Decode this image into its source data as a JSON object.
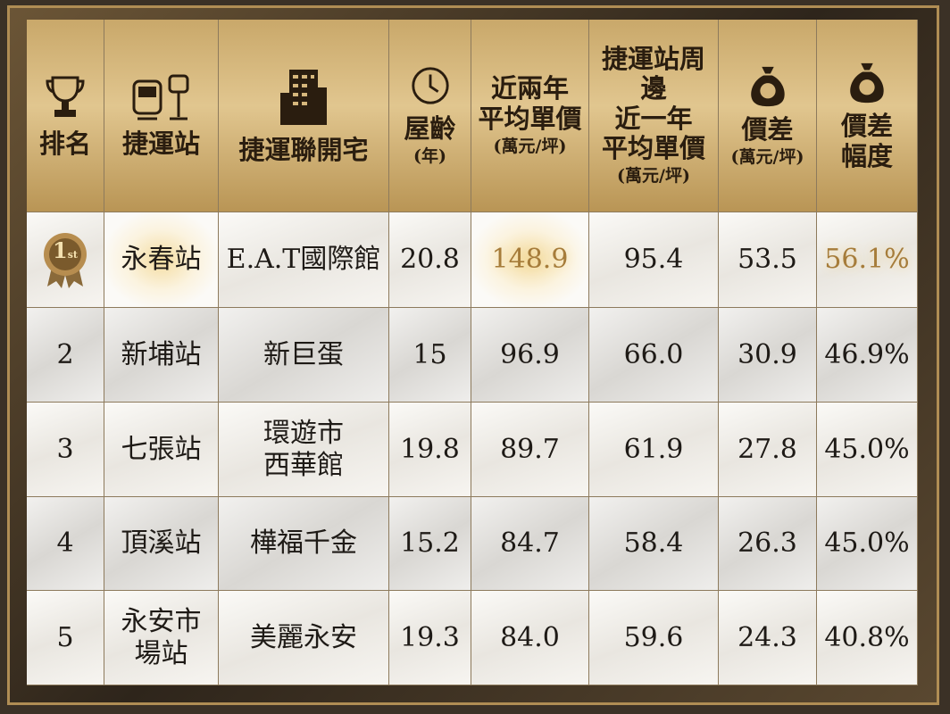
{
  "table": {
    "headers": [
      {
        "lines": [
          "排名"
        ]
      },
      {
        "lines": [
          "捷運站"
        ]
      },
      {
        "lines": [
          "捷運聯開宅"
        ]
      },
      {
        "lines": [
          "屋齡"
        ],
        "unit": "(年)"
      },
      {
        "lines": [
          "近兩年",
          "平均單價"
        ],
        "unit": "(萬元/坪)"
      },
      {
        "lines": [
          "捷運站周邊",
          "近一年",
          "平均單價"
        ],
        "unit": "(萬元/坪)"
      },
      {
        "lines": [
          "價差"
        ],
        "unit": "(萬元/坪)"
      },
      {
        "lines": [
          "價差",
          "幅度"
        ]
      }
    ],
    "rows": [
      [
        {
          "number": "1",
          "suffix": "st"
        },
        [
          "永春站"
        ],
        [
          "E.A.T國際館"
        ],
        [
          "20.8"
        ],
        [
          "148.9"
        ],
        [
          "95.4"
        ],
        [
          "53.5"
        ],
        [
          "56.1%"
        ]
      ],
      [
        [
          "2"
        ],
        [
          "新埔站"
        ],
        [
          "新巨蛋"
        ],
        [
          "15"
        ],
        [
          "96.9"
        ],
        [
          "66.0"
        ],
        [
          "30.9"
        ],
        [
          "46.9%"
        ]
      ],
      [
        [
          "3"
        ],
        [
          "七張站"
        ],
        [
          "環遊市",
          "西華館"
        ],
        [
          "19.8"
        ],
        [
          "89.7"
        ],
        [
          "61.9"
        ],
        [
          "27.8"
        ],
        [
          "45.0%"
        ]
      ],
      [
        [
          "4"
        ],
        [
          "頂溪站"
        ],
        [
          "樺福千金"
        ],
        [
          "15.2"
        ],
        [
          "84.7"
        ],
        [
          "58.4"
        ],
        [
          "26.3"
        ],
        [
          "45.0%"
        ]
      ],
      [
        [
          "5"
        ],
        [
          "永安市",
          "場站"
        ],
        [
          "美麗永安"
        ],
        [
          "19.3"
        ],
        [
          "84.0"
        ],
        [
          "59.6"
        ],
        [
          "24.3"
        ],
        [
          "40.8%"
        ]
      ]
    ]
  }
}
